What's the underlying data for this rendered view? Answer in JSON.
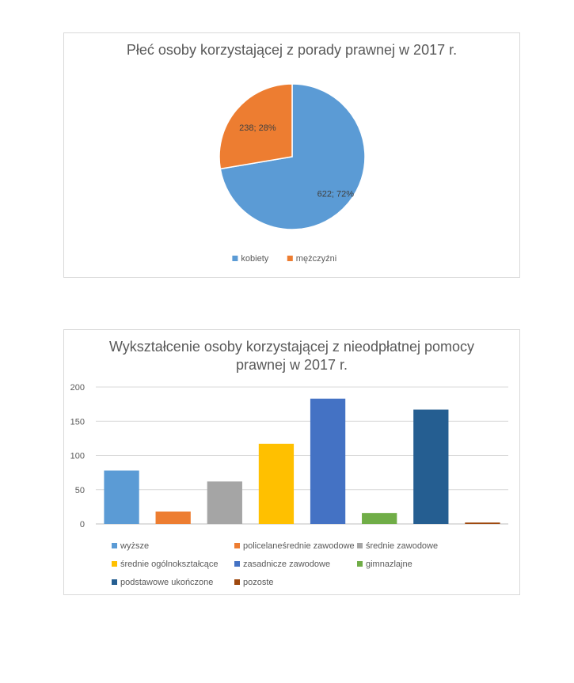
{
  "charts": {
    "pie": {
      "title": "Płeć osoby korzystającej z porady prawnej w 2017 r."
    },
    "bar": {
      "title": "Wykształcenie osoby korzystającej z nieodpłatnej pomocy prawnej w 2017 r."
    }
  },
  "chart_data": [
    {
      "type": "pie",
      "title": "Płeć osoby korzystającej z porady prawnej w 2017 r.",
      "categories": [
        "kobiety",
        "mężczyźni"
      ],
      "values": [
        622,
        238
      ],
      "data_labels": [
        "622; 72%",
        "238; 28%"
      ],
      "colors": [
        "#5B9BD5",
        "#ED7D31"
      ],
      "legend_position": "bottom"
    },
    {
      "type": "bar",
      "title": "Wykształcenie osoby korzystającej z nieodpłatnej pomocy prawnej w 2017 r.",
      "categories": [
        "wyższe",
        "policelaneśrednie zawodowe",
        "średnie zawodowe",
        "średnie ogólnokształcące",
        "zasadnicze zawodowe",
        "gimnazlajne",
        "podstawowe ukończone",
        "pozoste"
      ],
      "values": [
        78,
        18,
        62,
        117,
        183,
        16,
        167,
        2
      ],
      "colors": [
        "#5B9BD5",
        "#ED7D31",
        "#A5A5A5",
        "#FFC000",
        "#4472C4",
        "#70AD47",
        "#255E91",
        "#9E480E"
      ],
      "ylim": [
        0,
        200
      ],
      "yticks": [
        0,
        50,
        100,
        150,
        200
      ],
      "xlabel": "",
      "ylabel": "",
      "grid": true,
      "legend_position": "bottom"
    }
  ]
}
